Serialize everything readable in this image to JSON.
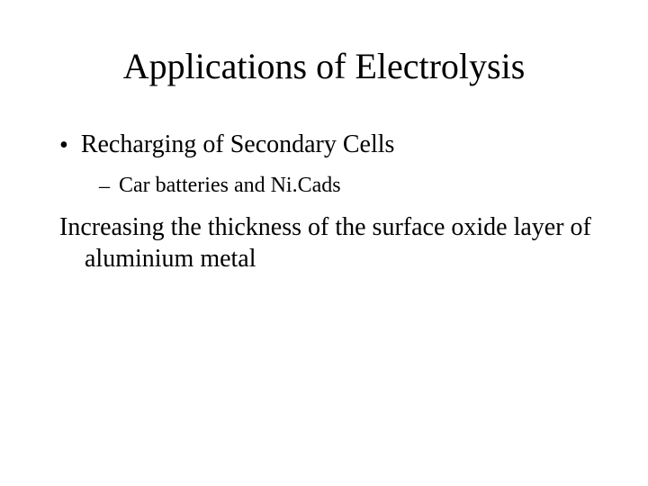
{
  "slide": {
    "title": "Applications of Electrolysis",
    "bullet1": {
      "marker": "•",
      "text": "Recharging of Secondary Cells"
    },
    "bullet1_sub": {
      "marker": "–",
      "text": "Car batteries and Ni.Cads"
    },
    "paragraph": "Increasing the thickness of the surface oxide layer of aluminium metal"
  },
  "style": {
    "background_color": "#ffffff",
    "text_color": "#000000",
    "font_family": "Times New Roman",
    "title_fontsize": 40,
    "body_fontsize": 28,
    "sub_fontsize": 24
  }
}
